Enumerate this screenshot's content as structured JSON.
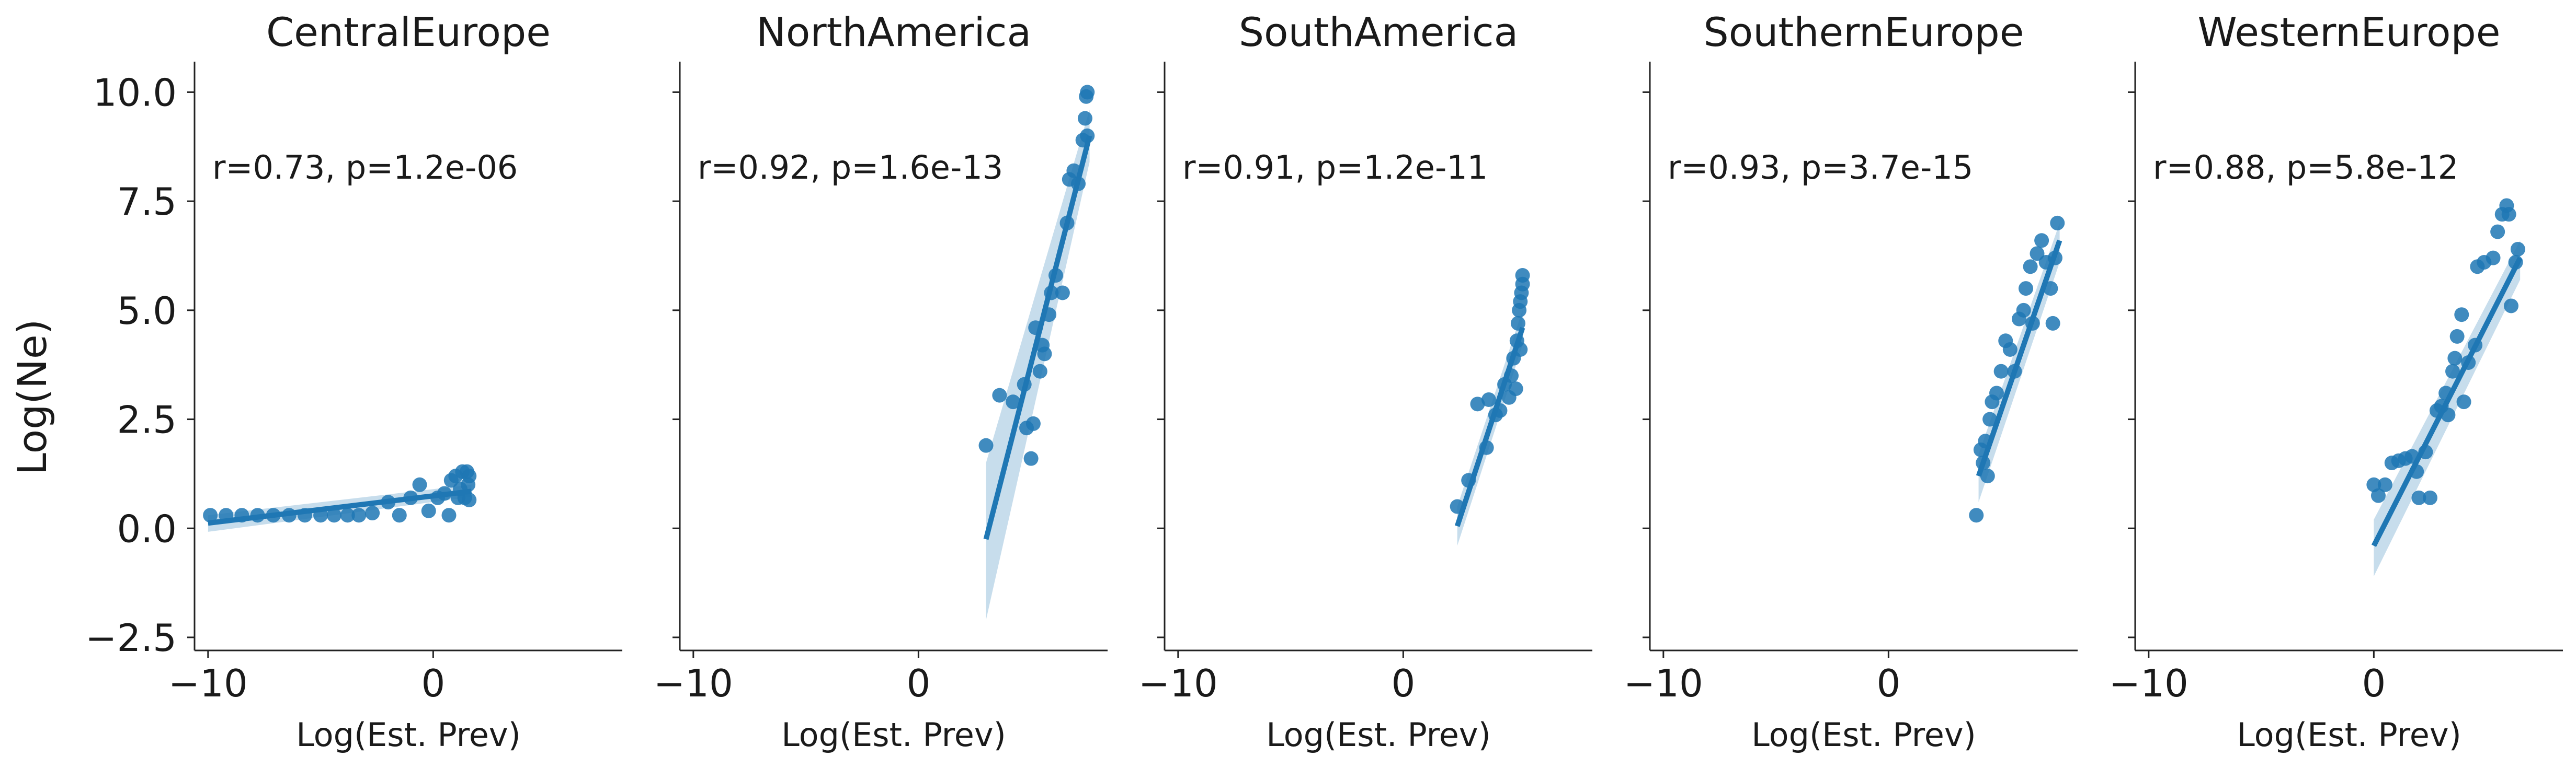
{
  "chart_data": {
    "type": "scatter",
    "ylabel": "Log(Ne)",
    "xlabel": "Log(Est. Prev)",
    "ylim": [
      -2.8,
      10.7
    ],
    "yticks": [
      10.0,
      7.5,
      5.0,
      2.5,
      0.0,
      -2.5
    ],
    "xlim": [
      -10.6,
      8.4
    ],
    "xticks": [
      -10,
      0
    ],
    "grid": false,
    "color": "#1f77b4",
    "panels": [
      {
        "title": "CentralEurope",
        "annotation": "r=0.73, p=1.2e-06",
        "fit": {
          "x": [
            -10,
            1.7
          ],
          "y": [
            0.12,
            0.85
          ]
        },
        "band": {
          "upper_left": 0.3,
          "lower_left": -0.08,
          "upper_right": 1.0,
          "lower_right": 0.72
        },
        "points": [
          {
            "x": -9.9,
            "y": 0.3
          },
          {
            "x": -9.2,
            "y": 0.3
          },
          {
            "x": -8.5,
            "y": 0.3
          },
          {
            "x": -7.8,
            "y": 0.3
          },
          {
            "x": -7.1,
            "y": 0.3
          },
          {
            "x": -6.4,
            "y": 0.3
          },
          {
            "x": -5.7,
            "y": 0.3
          },
          {
            "x": -5.0,
            "y": 0.3
          },
          {
            "x": -4.4,
            "y": 0.3
          },
          {
            "x": -3.8,
            "y": 0.3
          },
          {
            "x": -3.3,
            "y": 0.3
          },
          {
            "x": -2.7,
            "y": 0.35
          },
          {
            "x": -2.0,
            "y": 0.6
          },
          {
            "x": -1.5,
            "y": 0.3
          },
          {
            "x": -1.0,
            "y": 0.7
          },
          {
            "x": -0.6,
            "y": 1.0
          },
          {
            "x": -0.2,
            "y": 0.4
          },
          {
            "x": 0.2,
            "y": 0.7
          },
          {
            "x": 0.5,
            "y": 0.8
          },
          {
            "x": 0.7,
            "y": 0.3
          },
          {
            "x": 0.8,
            "y": 1.1
          },
          {
            "x": 1.0,
            "y": 1.2
          },
          {
            "x": 1.1,
            "y": 0.7
          },
          {
            "x": 1.2,
            "y": 0.9
          },
          {
            "x": 1.3,
            "y": 1.3
          },
          {
            "x": 1.4,
            "y": 0.7
          },
          {
            "x": 1.5,
            "y": 1.3
          },
          {
            "x": 1.55,
            "y": 1.0
          },
          {
            "x": 1.6,
            "y": 0.65
          },
          {
            "x": 1.6,
            "y": 1.2
          }
        ]
      },
      {
        "title": "NorthAmerica",
        "annotation": "r=0.92, p=1.6e-13",
        "fit": {
          "x": [
            3.0,
            7.6
          ],
          "y": [
            -0.25,
            9.0
          ]
        },
        "band": {
          "upper_left": 1.5,
          "lower_left": -2.1,
          "upper_right": 9.6,
          "lower_right": 8.4
        },
        "points": [
          {
            "x": 3.0,
            "y": 1.9
          },
          {
            "x": 3.6,
            "y": 3.05
          },
          {
            "x": 4.2,
            "y": 2.9
          },
          {
            "x": 4.7,
            "y": 3.3
          },
          {
            "x": 4.8,
            "y": 2.3
          },
          {
            "x": 5.0,
            "y": 1.6
          },
          {
            "x": 5.1,
            "y": 2.4
          },
          {
            "x": 5.2,
            "y": 4.6
          },
          {
            "x": 5.4,
            "y": 3.6
          },
          {
            "x": 5.5,
            "y": 4.2
          },
          {
            "x": 5.6,
            "y": 4.0
          },
          {
            "x": 5.8,
            "y": 4.9
          },
          {
            "x": 5.9,
            "y": 5.4
          },
          {
            "x": 6.1,
            "y": 5.8
          },
          {
            "x": 6.4,
            "y": 5.4
          },
          {
            "x": 6.6,
            "y": 7.0
          },
          {
            "x": 6.7,
            "y": 8.0
          },
          {
            "x": 6.9,
            "y": 8.2
          },
          {
            "x": 7.1,
            "y": 7.9
          },
          {
            "x": 7.3,
            "y": 8.9
          },
          {
            "x": 7.4,
            "y": 9.4
          },
          {
            "x": 7.45,
            "y": 9.9
          },
          {
            "x": 7.5,
            "y": 10.0
          },
          {
            "x": 7.5,
            "y": 9.0
          }
        ]
      },
      {
        "title": "SouthAmerica",
        "annotation": "r=0.91, p=1.2e-11",
        "fit": {
          "x": [
            2.4,
            5.3
          ],
          "y": [
            0.05,
            4.6
          ]
        },
        "band": {
          "upper_left": 0.5,
          "lower_left": -0.4,
          "upper_right": 5.0,
          "lower_right": 4.2
        },
        "points": [
          {
            "x": 2.4,
            "y": 0.5
          },
          {
            "x": 2.9,
            "y": 1.1
          },
          {
            "x": 3.3,
            "y": 2.85
          },
          {
            "x": 3.7,
            "y": 1.85
          },
          {
            "x": 3.8,
            "y": 2.95
          },
          {
            "x": 4.1,
            "y": 2.6
          },
          {
            "x": 4.3,
            "y": 2.7
          },
          {
            "x": 4.5,
            "y": 3.3
          },
          {
            "x": 4.7,
            "y": 3.0
          },
          {
            "x": 4.8,
            "y": 3.5
          },
          {
            "x": 4.9,
            "y": 3.9
          },
          {
            "x": 5.0,
            "y": 3.2
          },
          {
            "x": 5.05,
            "y": 4.3
          },
          {
            "x": 5.1,
            "y": 4.7
          },
          {
            "x": 5.15,
            "y": 5.0
          },
          {
            "x": 5.2,
            "y": 5.2
          },
          {
            "x": 5.2,
            "y": 4.1
          },
          {
            "x": 5.25,
            "y": 5.4
          },
          {
            "x": 5.3,
            "y": 5.6
          },
          {
            "x": 5.3,
            "y": 5.8
          }
        ]
      },
      {
        "title": "SouthernEurope",
        "annotation": "r=0.93, p=3.7e-15",
        "fit": {
          "x": [
            4.0,
            7.6
          ],
          "y": [
            1.2,
            6.6
          ]
        },
        "band": {
          "upper_left": 1.7,
          "lower_left": 0.6,
          "upper_right": 7.0,
          "lower_right": 6.1
        },
        "points": [
          {
            "x": 3.9,
            "y": 0.3
          },
          {
            "x": 4.1,
            "y": 1.8
          },
          {
            "x": 4.2,
            "y": 1.5
          },
          {
            "x": 4.3,
            "y": 2.0
          },
          {
            "x": 4.4,
            "y": 1.2
          },
          {
            "x": 4.5,
            "y": 2.5
          },
          {
            "x": 4.6,
            "y": 2.9
          },
          {
            "x": 4.8,
            "y": 3.1
          },
          {
            "x": 5.0,
            "y": 3.6
          },
          {
            "x": 5.2,
            "y": 4.3
          },
          {
            "x": 5.4,
            "y": 4.1
          },
          {
            "x": 5.6,
            "y": 3.6
          },
          {
            "x": 5.8,
            "y": 4.8
          },
          {
            "x": 6.0,
            "y": 5.0
          },
          {
            "x": 6.1,
            "y": 5.5
          },
          {
            "x": 6.3,
            "y": 6.0
          },
          {
            "x": 6.4,
            "y": 4.7
          },
          {
            "x": 6.6,
            "y": 6.3
          },
          {
            "x": 6.8,
            "y": 6.6
          },
          {
            "x": 7.0,
            "y": 6.1
          },
          {
            "x": 7.2,
            "y": 5.5
          },
          {
            "x": 7.3,
            "y": 4.7
          },
          {
            "x": 7.4,
            "y": 6.2
          },
          {
            "x": 7.5,
            "y": 7.0
          }
        ]
      },
      {
        "title": "WesternEurope",
        "annotation": "r=0.88, p=5.8e-12",
        "fit": {
          "x": [
            0.0,
            6.5
          ],
          "y": [
            -0.4,
            6.2
          ]
        },
        "band": {
          "upper_left": 0.2,
          "lower_left": -1.1,
          "upper_right": 6.6,
          "lower_right": 5.7
        },
        "points": [
          {
            "x": 0.0,
            "y": 1.0
          },
          {
            "x": 0.2,
            "y": 0.75
          },
          {
            "x": 0.5,
            "y": 1.0
          },
          {
            "x": 0.8,
            "y": 1.5
          },
          {
            "x": 1.1,
            "y": 1.55
          },
          {
            "x": 1.4,
            "y": 1.6
          },
          {
            "x": 1.7,
            "y": 1.65
          },
          {
            "x": 1.9,
            "y": 1.3
          },
          {
            "x": 2.0,
            "y": 0.7
          },
          {
            "x": 2.3,
            "y": 1.75
          },
          {
            "x": 2.5,
            "y": 0.7
          },
          {
            "x": 2.8,
            "y": 2.7
          },
          {
            "x": 3.0,
            "y": 2.8
          },
          {
            "x": 3.2,
            "y": 3.1
          },
          {
            "x": 3.3,
            "y": 2.6
          },
          {
            "x": 3.5,
            "y": 3.6
          },
          {
            "x": 3.6,
            "y": 3.9
          },
          {
            "x": 3.7,
            "y": 4.4
          },
          {
            "x": 3.9,
            "y": 4.9
          },
          {
            "x": 4.0,
            "y": 2.9
          },
          {
            "x": 4.2,
            "y": 3.8
          },
          {
            "x": 4.5,
            "y": 4.2
          },
          {
            "x": 4.6,
            "y": 6.0
          },
          {
            "x": 4.9,
            "y": 6.1
          },
          {
            "x": 5.3,
            "y": 6.2
          },
          {
            "x": 5.5,
            "y": 6.8
          },
          {
            "x": 5.7,
            "y": 7.2
          },
          {
            "x": 5.9,
            "y": 7.4
          },
          {
            "x": 6.0,
            "y": 7.2
          },
          {
            "x": 6.1,
            "y": 5.1
          },
          {
            "x": 6.3,
            "y": 6.1
          },
          {
            "x": 6.4,
            "y": 6.4
          }
        ]
      }
    ]
  }
}
